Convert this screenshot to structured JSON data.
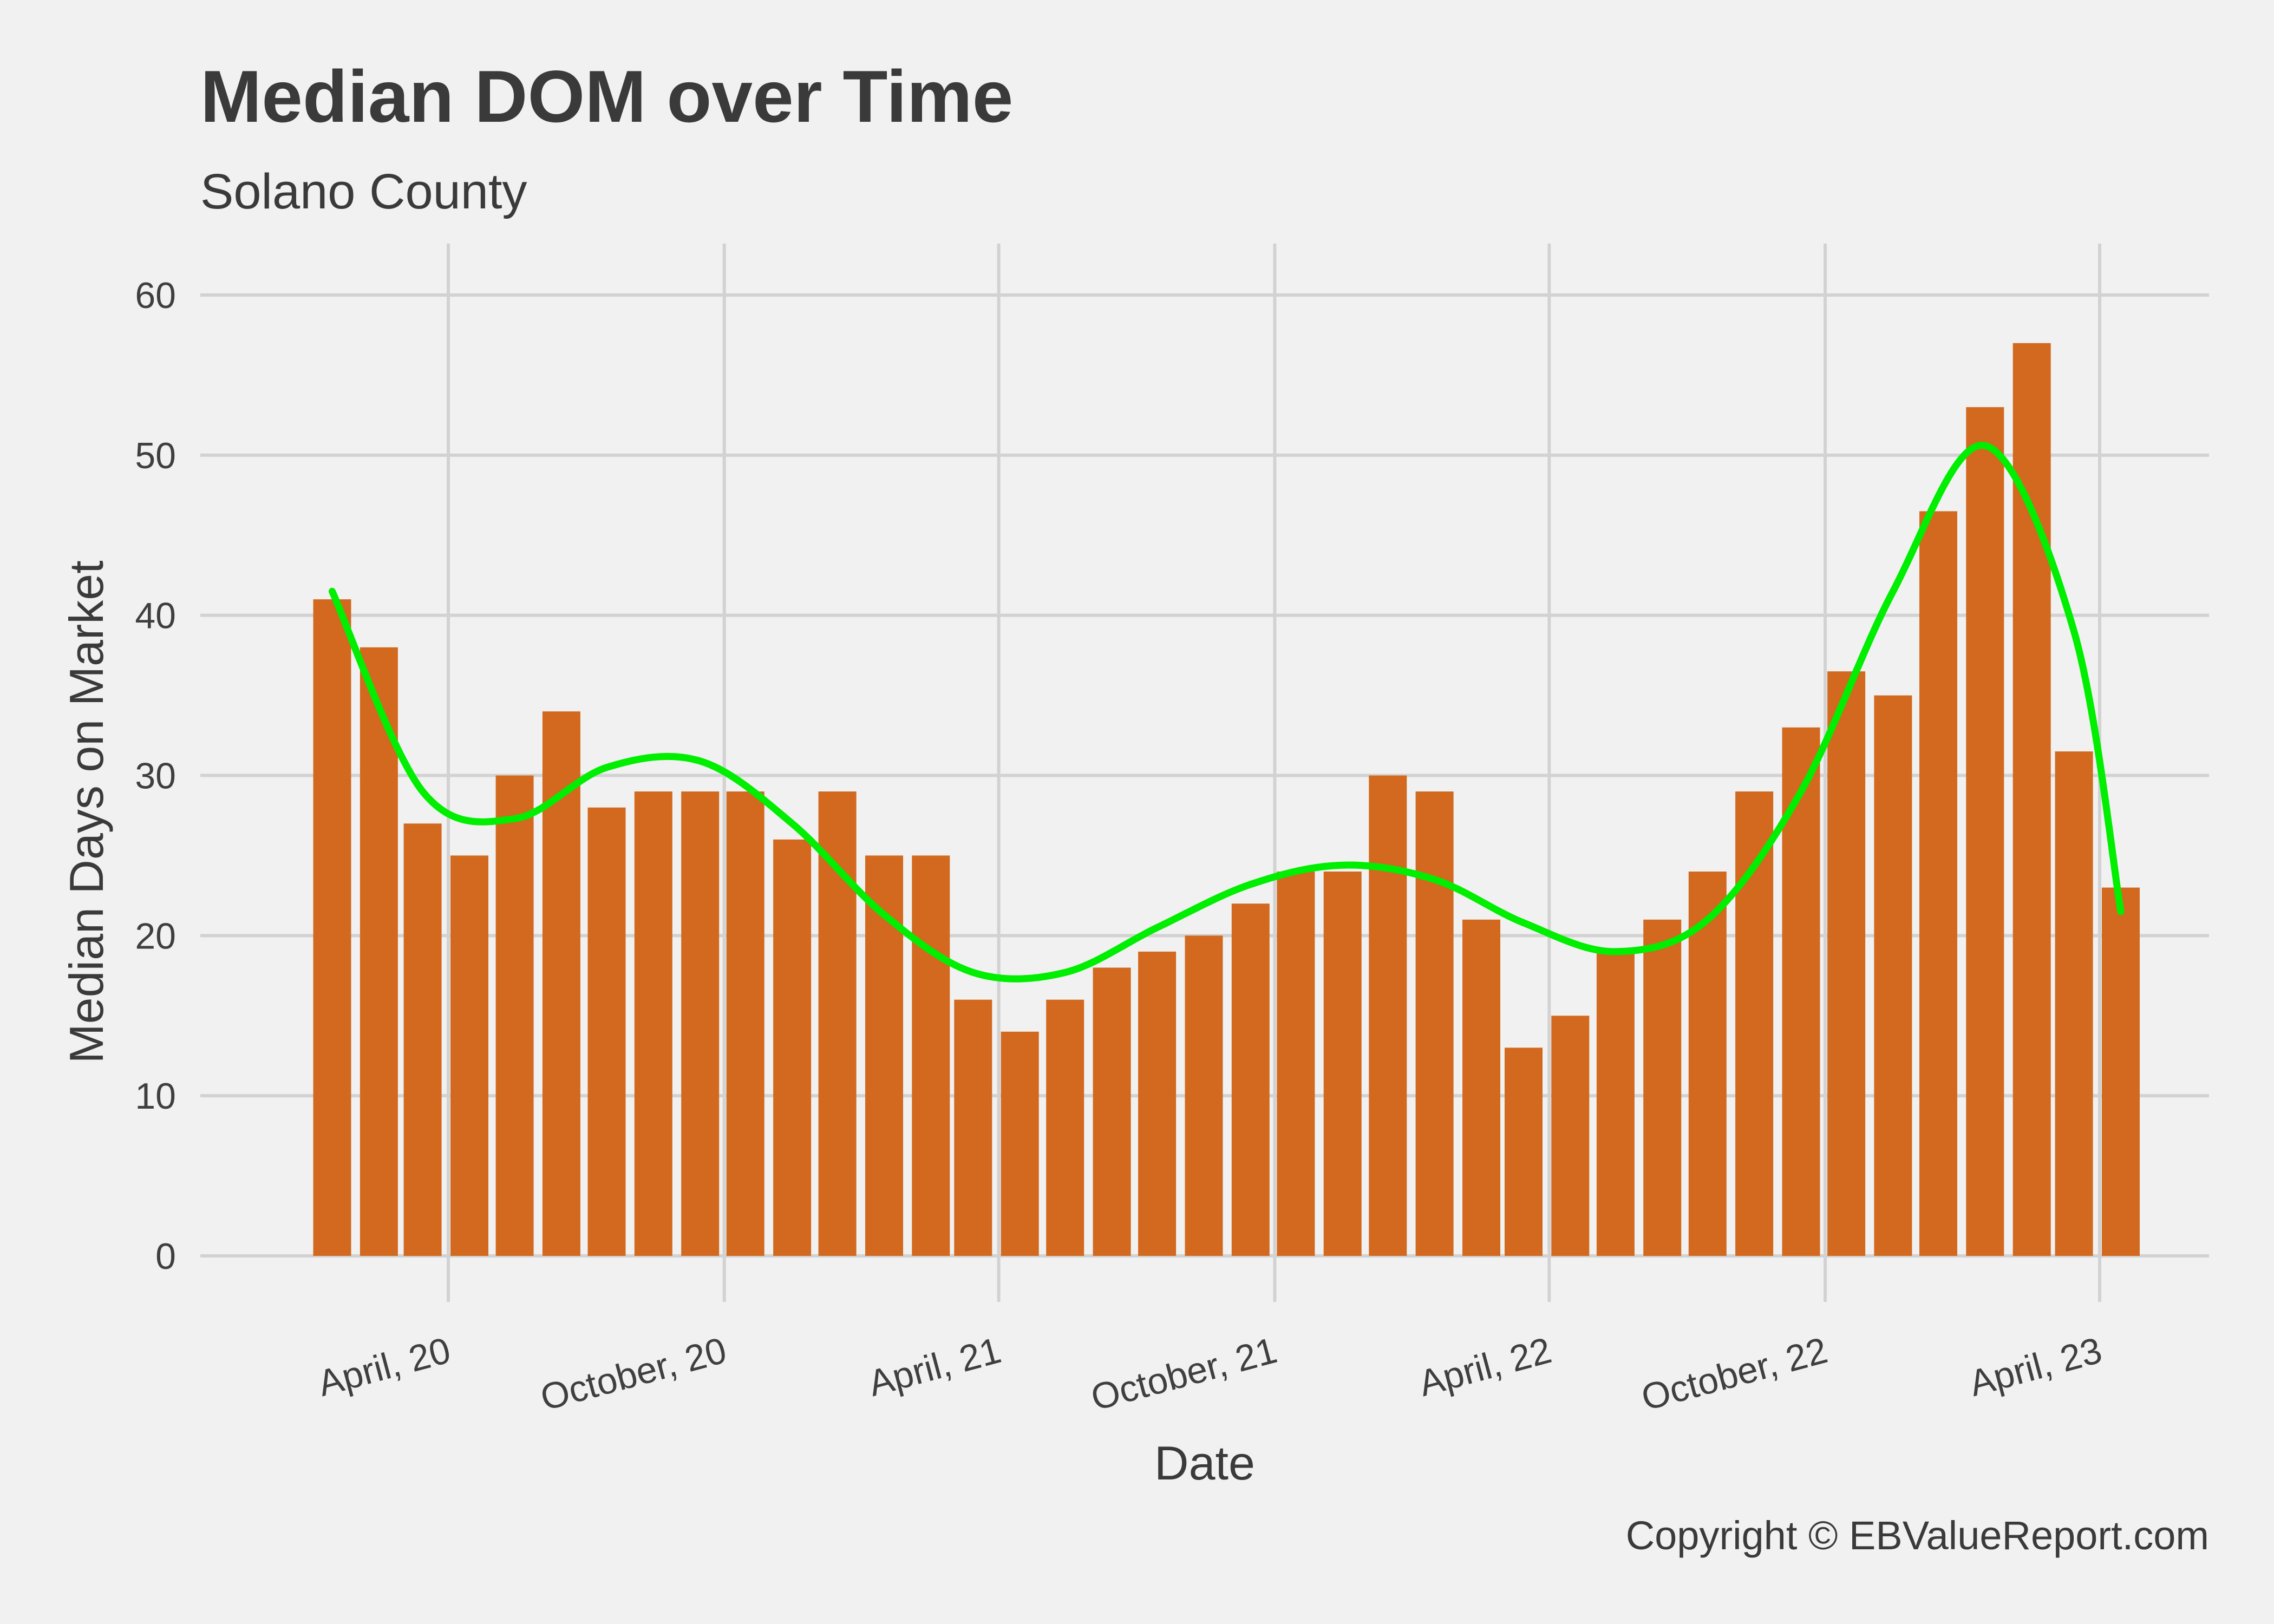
{
  "chart_data": {
    "type": "bar",
    "title": "Median DOM over Time",
    "subtitle": "Solano County",
    "xlabel": "Date",
    "ylabel": "Median Days on Market",
    "caption": "Copyright  © EBValueReport.com",
    "ylim": [
      0,
      62
    ],
    "y_ticks": [
      0,
      10,
      20,
      30,
      40,
      50,
      60
    ],
    "x_ticks": [
      {
        "date": "2020-04-01",
        "label": "April, 20"
      },
      {
        "date": "2020-10-01",
        "label": "October, 20"
      },
      {
        "date": "2021-04-01",
        "label": "April, 21"
      },
      {
        "date": "2021-10-01",
        "label": "October, 21"
      },
      {
        "date": "2022-04-01",
        "label": "April, 22"
      },
      {
        "date": "2022-10-01",
        "label": "October, 22"
      },
      {
        "date": "2023-04-01",
        "label": "April, 23"
      }
    ],
    "grid": true,
    "series": [
      {
        "type": "bar",
        "color": "#d2691e",
        "x": [
          "2020-01",
          "2020-02",
          "2020-03",
          "2020-04",
          "2020-05",
          "2020-06",
          "2020-07",
          "2020-08",
          "2020-09",
          "2020-10",
          "2020-11",
          "2020-12",
          "2021-01",
          "2021-02",
          "2021-03",
          "2021-04",
          "2021-05",
          "2021-06",
          "2021-07",
          "2021-08",
          "2021-09",
          "2021-10",
          "2021-11",
          "2021-12",
          "2022-01",
          "2022-02",
          "2022-03",
          "2022-04",
          "2022-05",
          "2022-06",
          "2022-07",
          "2022-08",
          "2022-09",
          "2022-10",
          "2022-11",
          "2022-12",
          "2023-01",
          "2023-02",
          "2023-03",
          "2023-04"
        ],
        "values": [
          41,
          38,
          27,
          25,
          30,
          34,
          28,
          29,
          29,
          29,
          26,
          29,
          25,
          25,
          16,
          14,
          16,
          18,
          19,
          20,
          22,
          24,
          24,
          30,
          29,
          21,
          13,
          15,
          19,
          21,
          24,
          29,
          33,
          36.5,
          35,
          46.5,
          53,
          57,
          31.5,
          23
        ]
      },
      {
        "type": "line",
        "color": "#00ee00",
        "x": [
          "2020-01",
          "2020-03",
          "2020-05",
          "2020-07",
          "2020-09",
          "2020-11",
          "2021-01",
          "2021-03",
          "2021-05",
          "2021-07",
          "2021-09",
          "2021-11",
          "2022-01",
          "2022-03",
          "2022-05",
          "2022-07",
          "2022-09",
          "2022-11",
          "2023-01",
          "2023-03",
          "2023-04"
        ],
        "values": [
          41.5,
          29,
          27.3,
          30.5,
          30.9,
          27,
          21.3,
          17.7,
          17.7,
          20.5,
          23.2,
          24.4,
          23.5,
          20.8,
          19,
          21,
          29,
          41.5,
          50.6,
          39,
          21.5
        ]
      }
    ]
  }
}
